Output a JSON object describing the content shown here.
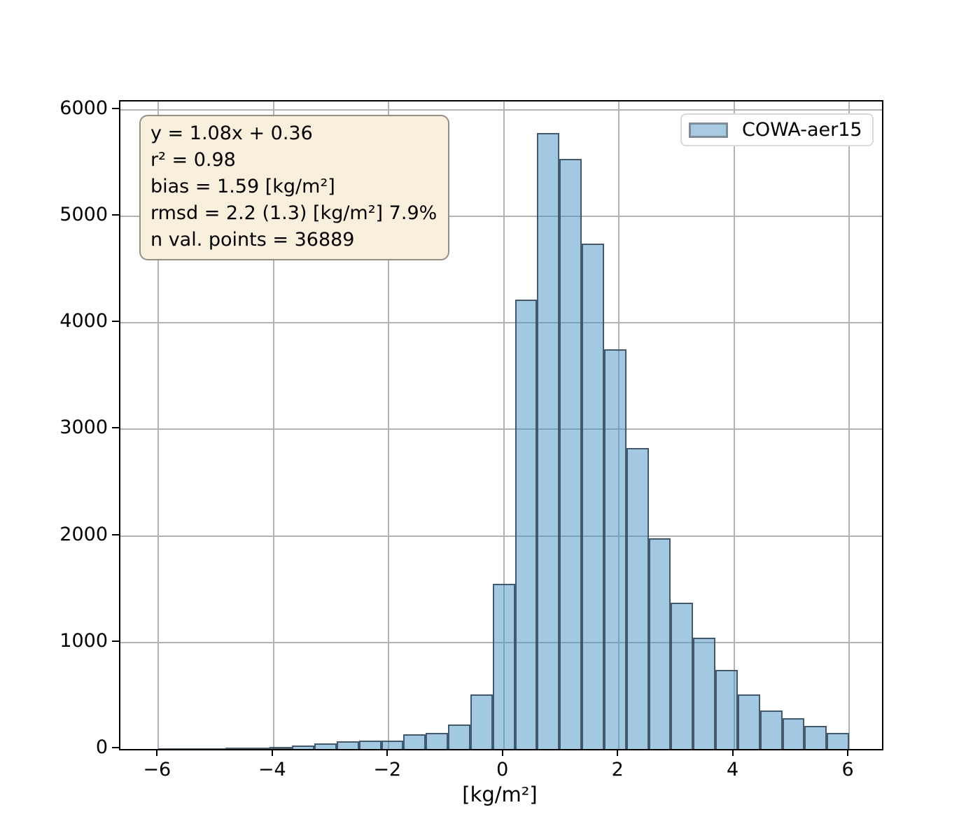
{
  "chart_data": {
    "type": "bar",
    "subtype": "histogram",
    "title": "",
    "xlabel": "[kg/m²]",
    "ylabel": "",
    "xlim": [
      -6.66,
      6.57
    ],
    "ylim": [
      0,
      6076
    ],
    "grid": true,
    "x_ticks": [
      -6,
      -4,
      -2,
      0,
      2,
      4,
      6
    ],
    "x_tick_labels": [
      "−6",
      "−4",
      "−2",
      "0",
      "2",
      "4",
      "6"
    ],
    "y_ticks": [
      0,
      1000,
      2000,
      3000,
      4000,
      5000,
      6000
    ],
    "y_tick_labels": [
      "0",
      "1000",
      "2000",
      "3000",
      "4000",
      "5000",
      "6000"
    ],
    "series_label": "COWA-aer15",
    "bin_edges": [
      -6.0,
      -5.613,
      -5.226,
      -4.839,
      -4.452,
      -4.065,
      -3.677,
      -3.29,
      -2.903,
      -2.516,
      -2.129,
      -1.742,
      -1.355,
      -0.968,
      -0.581,
      -0.194,
      0.194,
      0.581,
      0.968,
      1.355,
      1.742,
      2.129,
      2.516,
      2.903,
      3.29,
      3.677,
      4.065,
      4.452,
      4.839,
      5.226,
      5.613,
      6.0
    ],
    "counts": [
      2,
      5,
      9,
      12,
      15,
      22,
      33,
      50,
      70,
      76,
      81,
      136,
      153,
      230,
      515,
      1550,
      4216,
      5780,
      5540,
      4742,
      3750,
      2823,
      1976,
      1373,
      1045,
      742,
      514,
      359,
      287,
      219,
      151
    ],
    "legend_position": "upper right",
    "colors": {
      "bar_fill_rgba": "rgba(71,145,197,0.5)",
      "bar_edge": "rgba(58,76,94,0.9)",
      "grid": "#b2b2b2",
      "spine": "#000000"
    }
  },
  "annotation_box": {
    "lines": [
      "y = 1.08x + 0.36",
      "r² = 0.98",
      "bias = 1.59 [kg/m²]",
      "rmsd = 2.2 (1.3) [kg/m²] 7.9%",
      "n val. points = 36889"
    ],
    "bg_color": "#f8efdc",
    "border_color": "#958f85"
  },
  "legend": {
    "label": "COWA-aer15",
    "patch_fill": "#a8cbe2",
    "patch_edge": "#7e8b98"
  }
}
